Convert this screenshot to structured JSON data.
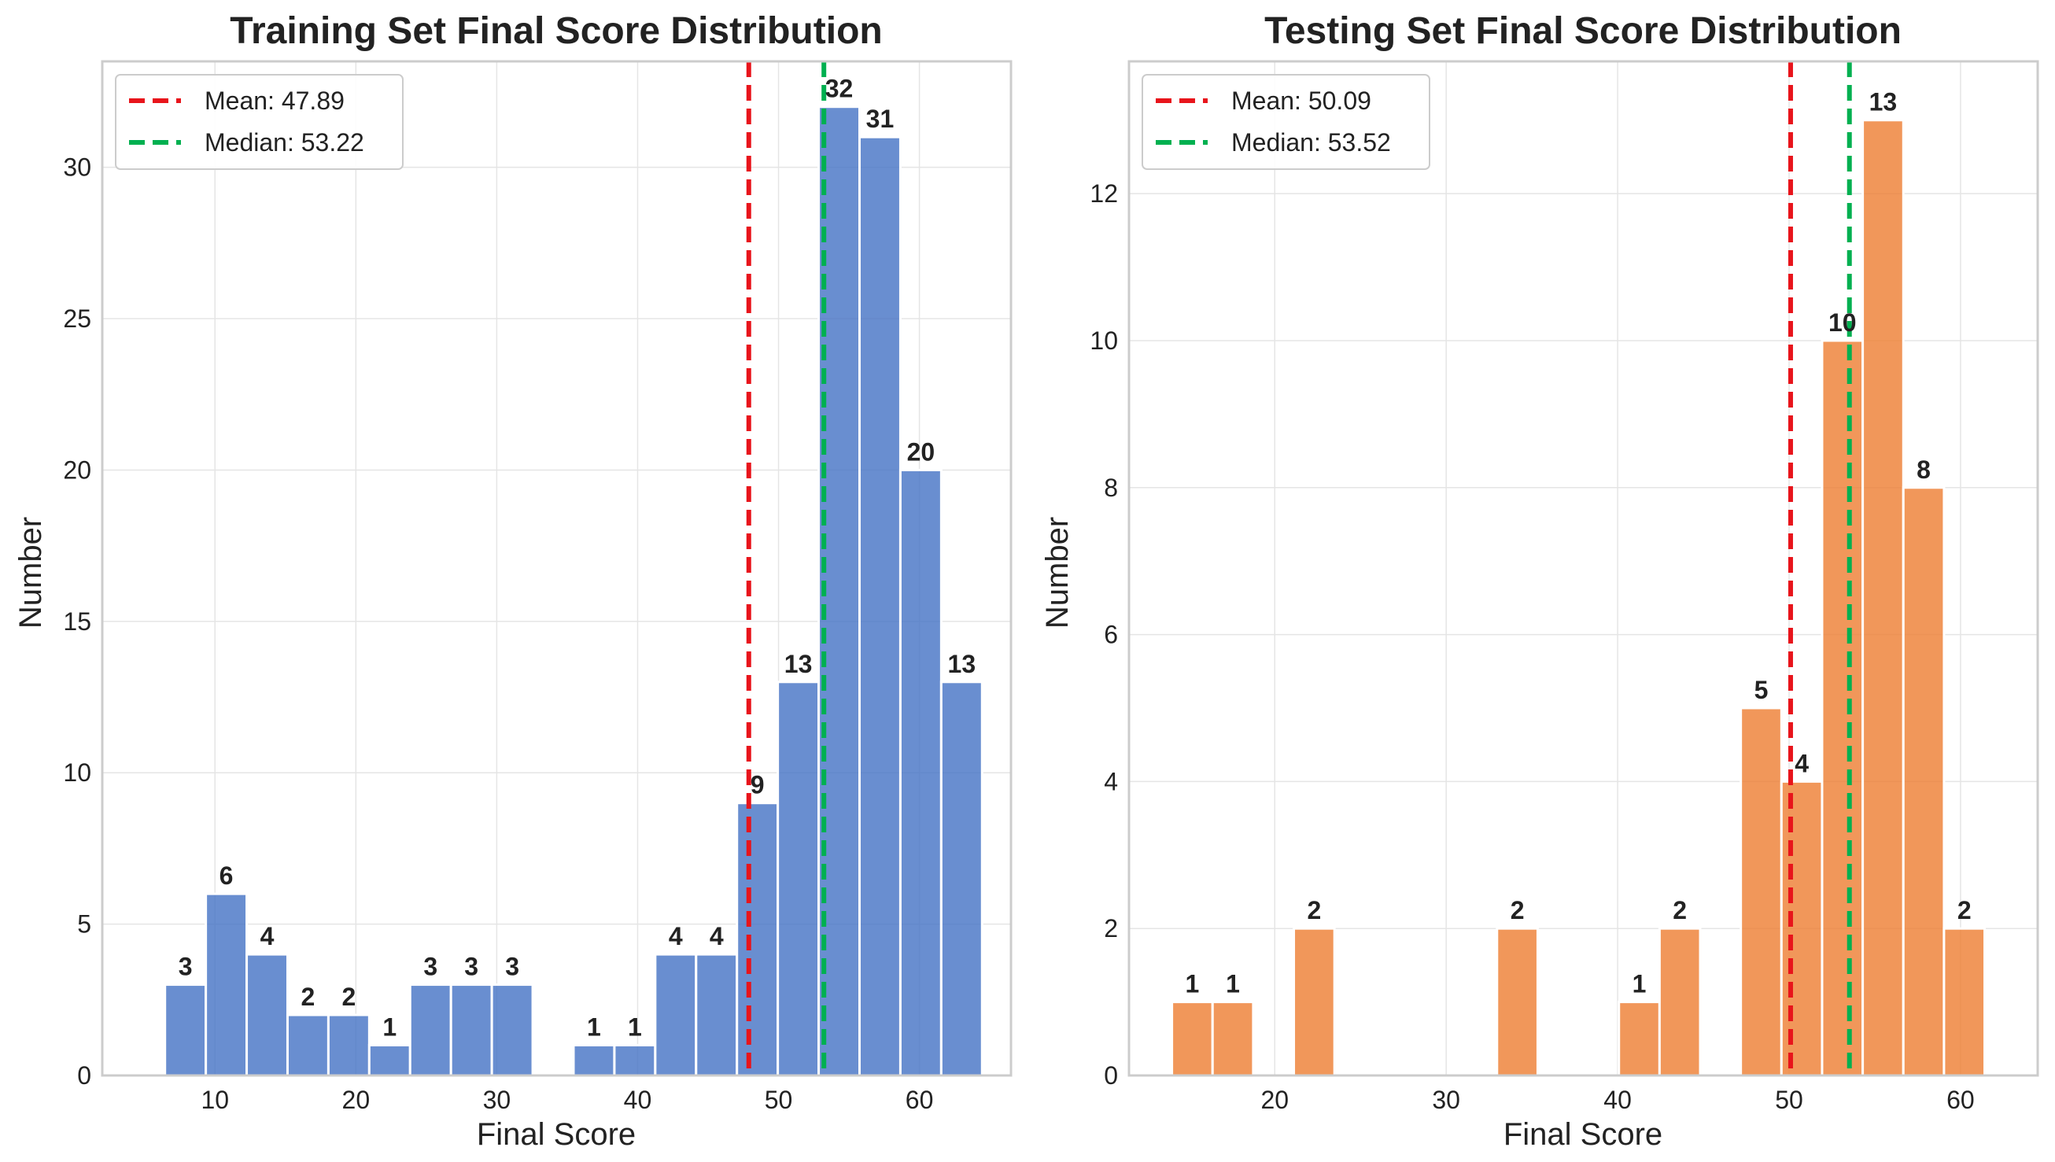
{
  "chart_data": [
    {
      "type": "bar",
      "title": "Training Set Final Score Distribution",
      "xlabel": "Final Score",
      "ylabel": "Number",
      "xlim": [
        2.0,
        66.5
      ],
      "ylim": [
        0,
        33.5
      ],
      "xticks": [
        10,
        20,
        30,
        40,
        50,
        60
      ],
      "yticks": [
        0,
        5,
        10,
        15,
        20,
        25,
        30
      ],
      "grid": true,
      "legend_position": "top-left",
      "bar_color": "#4472C4",
      "bin_width": 2.9,
      "x": [
        7.9,
        10.8,
        13.7,
        16.6,
        19.5,
        22.4,
        25.3,
        28.2,
        31.1,
        34.0,
        36.9,
        39.8,
        42.7,
        45.6,
        48.5,
        51.4,
        54.3,
        57.2,
        60.1,
        63.0
      ],
      "values": [
        3,
        6,
        4,
        2,
        2,
        1,
        3,
        3,
        3,
        0,
        1,
        1,
        4,
        4,
        9,
        13,
        32,
        31,
        20,
        13
      ],
      "reference_lines": [
        {
          "label": "Mean: 47.89",
          "value": 47.89,
          "color": "#E8141B"
        },
        {
          "label": "Median: 53.22",
          "value": 53.22,
          "color": "#00B050"
        }
      ]
    },
    {
      "type": "bar",
      "title": "Testing Set Final Score Distribution",
      "xlabel": "Final Score",
      "ylabel": "Number",
      "xlim": [
        11.5,
        64.5
      ],
      "ylim": [
        0,
        13.8
      ],
      "xticks": [
        20,
        30,
        40,
        50,
        60
      ],
      "yticks": [
        0,
        2,
        4,
        6,
        8,
        10,
        12
      ],
      "grid": true,
      "legend_position": "top-left",
      "bar_color": "#ED7D31",
      "bin_width": 2.37,
      "x": [
        15.19,
        17.56,
        19.93,
        22.3,
        24.67,
        27.04,
        29.41,
        31.78,
        34.15,
        36.52,
        38.89,
        41.26,
        43.63,
        46.0,
        48.37,
        50.74,
        53.11,
        55.48,
        57.85,
        60.22
      ],
      "values": [
        1,
        1,
        0,
        2,
        0,
        0,
        0,
        0,
        2,
        0,
        0,
        1,
        2,
        0,
        5,
        4,
        10,
        13,
        8,
        2
      ],
      "reference_lines": [
        {
          "label": "Mean: 50.09",
          "value": 50.09,
          "color": "#E8141B"
        },
        {
          "label": "Median: 53.52",
          "value": 53.52,
          "color": "#00B050"
        }
      ]
    }
  ]
}
